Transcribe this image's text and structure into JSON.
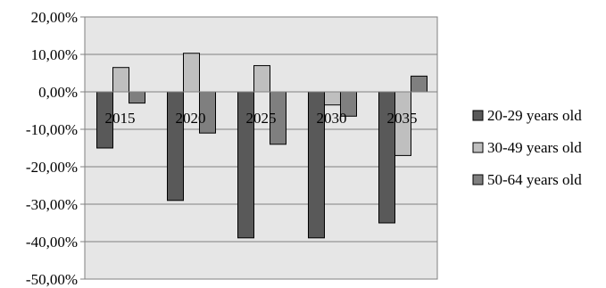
{
  "chart_data": {
    "type": "bar",
    "categories": [
      "2015",
      "2020",
      "2025",
      "2030",
      "2035"
    ],
    "series": [
      {
        "name": "20-29 years old",
        "values": [
          -15.0,
          -29.0,
          -39.0,
          -39.0,
          -35.0
        ],
        "color": "#595959"
      },
      {
        "name": "30-49 years old",
        "values": [
          6.5,
          10.3,
          7.0,
          -3.5,
          -17.0
        ],
        "color": "#bfbfbf"
      },
      {
        "name": "50-64 years old",
        "values": [
          -3.0,
          -11.0,
          -14.0,
          -6.5,
          4.2
        ],
        "color": "#7f7f7f"
      }
    ],
    "ylim": [
      -50,
      20
    ],
    "yticks": [
      {
        "value": 20,
        "label": "20,00%"
      },
      {
        "value": 10,
        "label": "10,00%"
      },
      {
        "value": 0,
        "label": "0,00%"
      },
      {
        "value": -10,
        "label": "-10,00%"
      },
      {
        "value": -20,
        "label": "-20,00%"
      },
      {
        "value": -30,
        "label": "-30,00%"
      },
      {
        "value": -40,
        "label": "-40,00%"
      },
      {
        "value": -50,
        "label": "-50,00%"
      }
    ],
    "grid": true,
    "legend_position": "right",
    "plot_background": "#e6e6e6"
  }
}
